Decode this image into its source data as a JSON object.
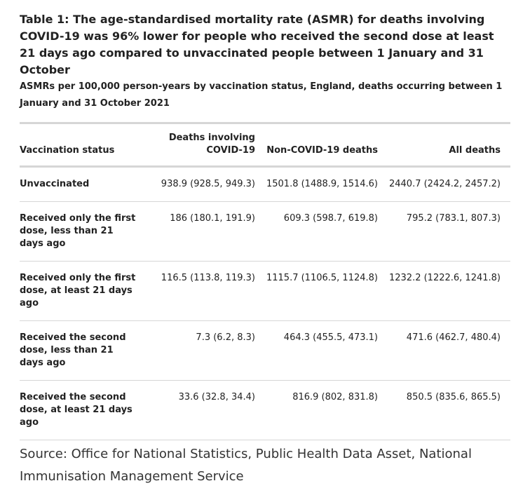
{
  "caption": {
    "title": "Table 1: The age-standardised mortality rate (ASMR) for deaths involving COVID-19 was 96% lower for people who received the second dose at least 21 days ago compared to unvaccinated people between 1 January and 31 October",
    "subtitle": "ASMRs per 100,000 person-years by vaccination status, England, deaths occurring between 1 January and 31 October 2021"
  },
  "table": {
    "headers": [
      "Vaccination status",
      "Deaths involving COVID-19",
      "Non-COVID-19 deaths",
      "All deaths"
    ],
    "rows": [
      {
        "status": "Unvaccinated",
        "covid": "938.9 (928.5, 949.3)",
        "non_covid": "1501.8 (1488.9, 1514.6)",
        "all": "2440.7 (2424.2, 2457.2)"
      },
      {
        "status": "Received only the first dose, less than 21 days ago",
        "covid": "186 (180.1, 191.9)",
        "non_covid": "609.3 (598.7, 619.8)",
        "all": "795.2 (783.1, 807.3)"
      },
      {
        "status": "Received only the first dose, at least 21 days ago",
        "covid": "116.5 (113.8, 119.3)",
        "non_covid": "1115.7 (1106.5, 1124.8)",
        "all": "1232.2 (1222.6, 1241.8)"
      },
      {
        "status": "Received the second dose, less than 21 days ago",
        "covid": "7.3 (6.2, 8.3)",
        "non_covid": "464.3 (455.5, 473.1)",
        "all": "471.6 (462.7, 480.4)"
      },
      {
        "status": "Received the second dose, at least 21 days ago",
        "covid": "33.6 (32.8, 34.4)",
        "non_covid": "816.9 (802, 831.8)",
        "all": "850.5 (835.6, 865.5)"
      }
    ]
  },
  "source": "Source: Office for National Statistics, Public Health Data Asset, National Immunisation Management Service",
  "colors": {
    "text": "#222222",
    "rule": "#d6d6d6"
  }
}
